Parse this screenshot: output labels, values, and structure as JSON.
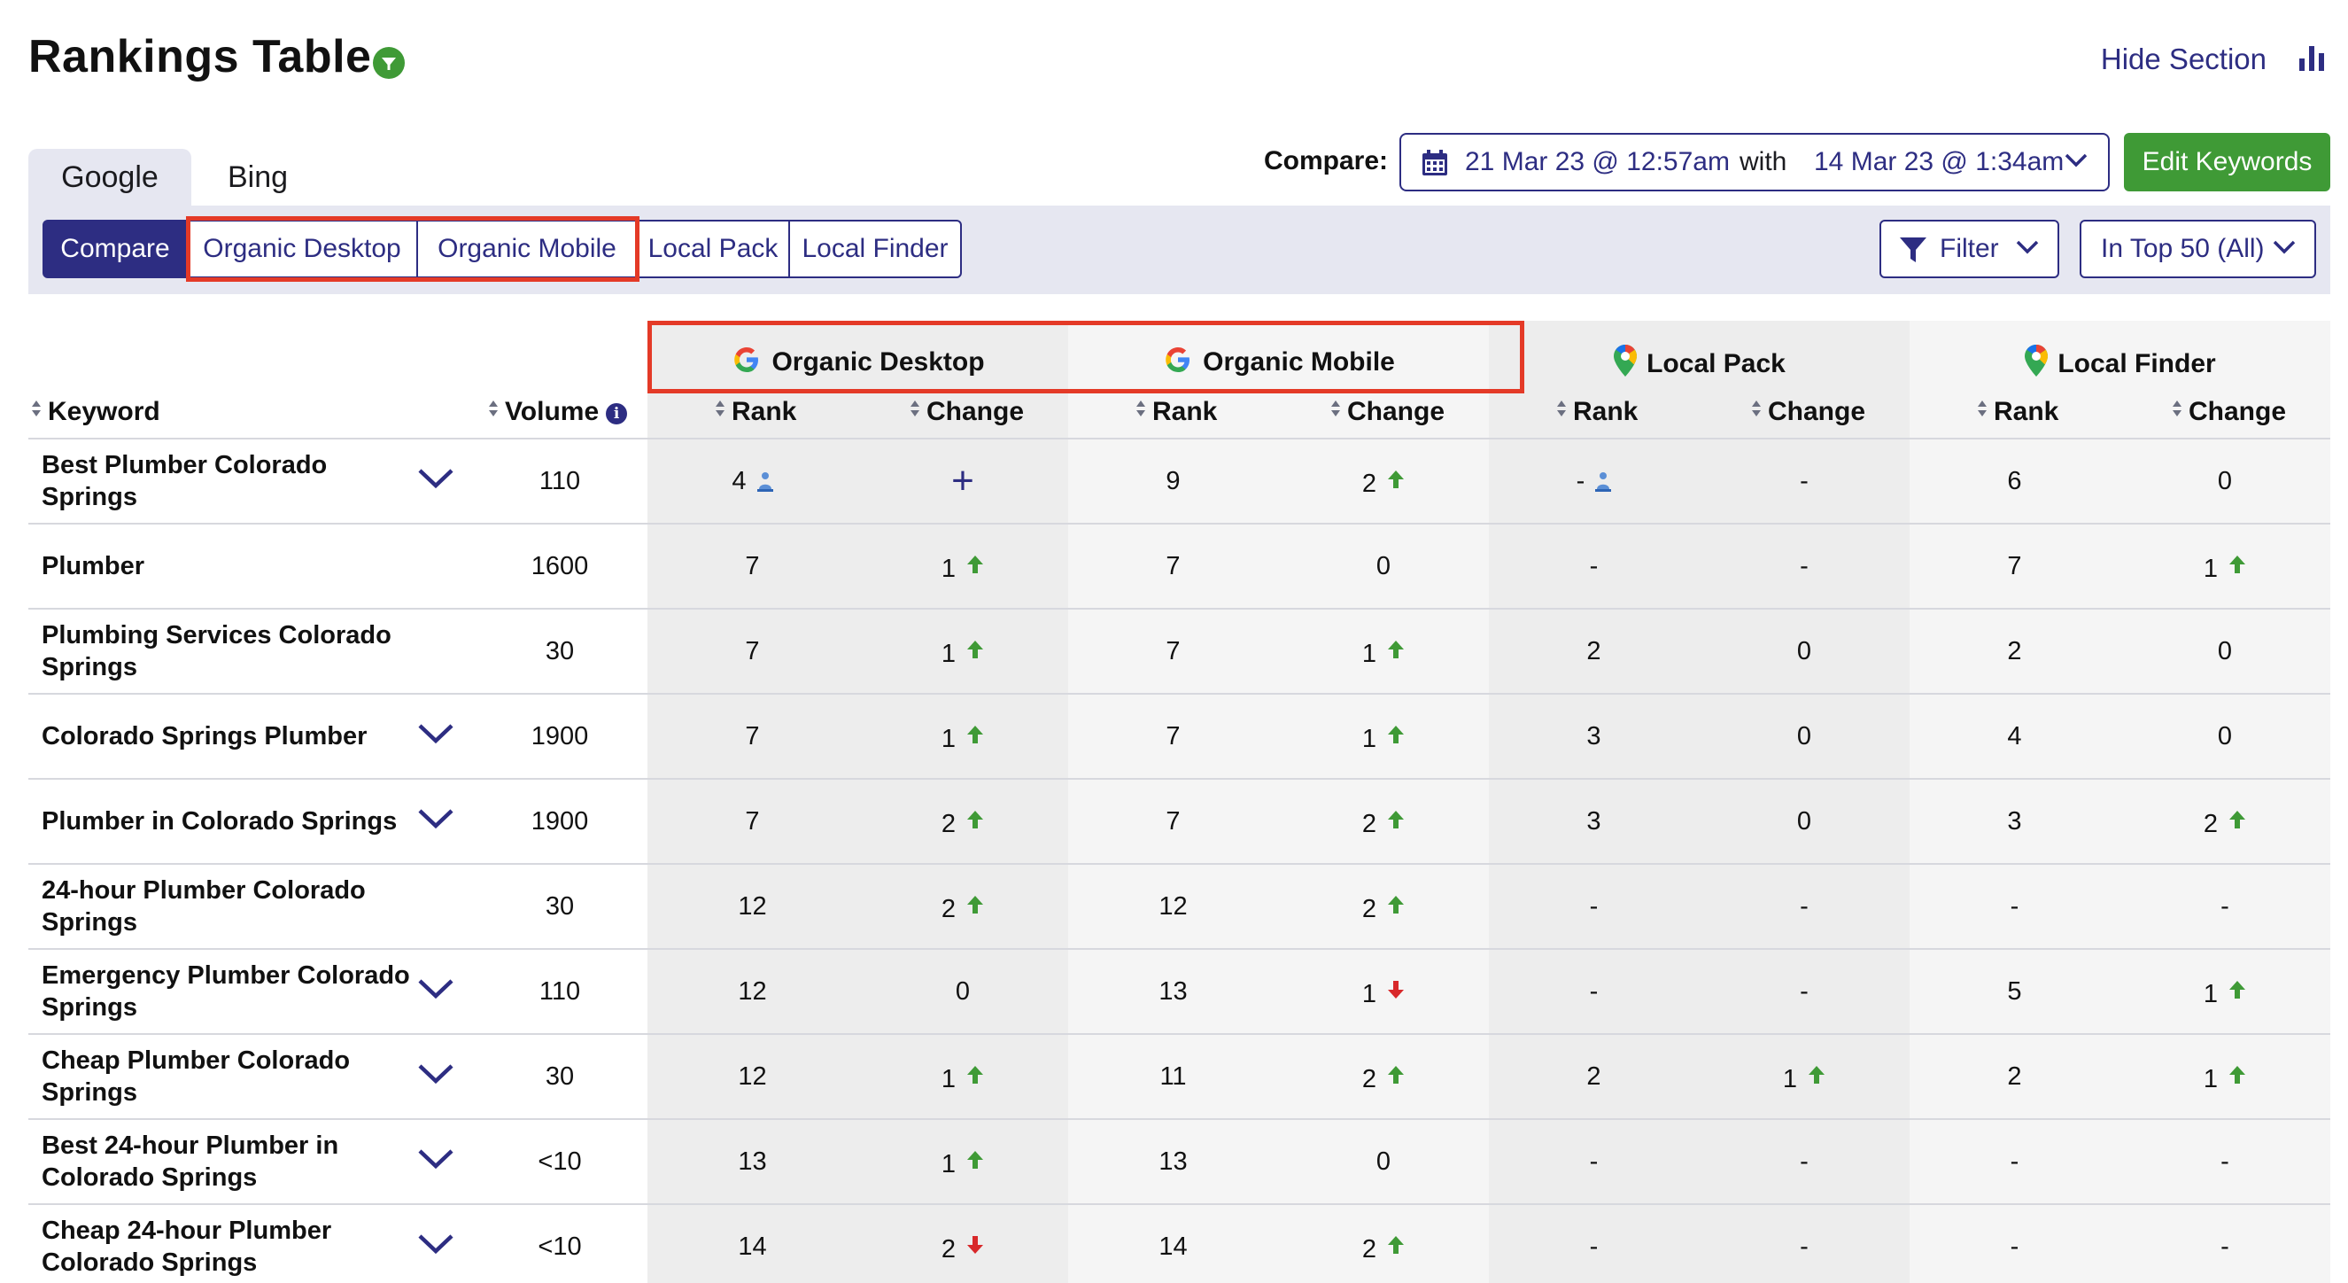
{
  "page": {
    "title": "Rankings Table",
    "hide_section": "Hide Section"
  },
  "engine_tabs": [
    {
      "label": "Google",
      "active": true
    },
    {
      "label": "Bing",
      "active": false
    }
  ],
  "compare": {
    "label": "Compare:",
    "date_from": "21 Mar 23 @ 12:57am",
    "with_label": "with",
    "date_to": "14 Mar 23 @ 1:34am"
  },
  "edit_keywords": "Edit Keywords",
  "view_tabs": [
    {
      "label": "Compare",
      "active": true
    },
    {
      "label": "Organic Desktop",
      "active": false
    },
    {
      "label": "Organic Mobile",
      "active": false
    },
    {
      "label": "Local Pack",
      "active": false
    },
    {
      "label": "Local Finder",
      "active": false
    }
  ],
  "filter_label": "Filter",
  "top_select": "In Top 50 (All)",
  "table": {
    "keyword_header": "Keyword",
    "volume_header": "Volume",
    "rank_header": "Rank",
    "change_header": "Change",
    "groups": [
      {
        "title": "Organic Desktop",
        "icon": "google-logo-icon"
      },
      {
        "title": "Organic Mobile",
        "icon": "google-logo-icon"
      },
      {
        "title": "Local Pack",
        "icon": "map-pin-icon"
      },
      {
        "title": "Local Finder",
        "icon": "map-pin-icon"
      }
    ],
    "rows": [
      {
        "keyword": "Best Plumber Colorado Springs",
        "expandable": true,
        "volume": "110",
        "od_rank": "4",
        "od_rank_icon": true,
        "od_change": "+",
        "od_dir": "new",
        "om_rank": "9",
        "om_change": "2",
        "om_dir": "up",
        "lp_rank": "-",
        "lp_rank_icon": true,
        "lp_change": "-",
        "lp_dir": "",
        "lf_rank": "6",
        "lf_change": "0",
        "lf_dir": ""
      },
      {
        "keyword": "Plumber",
        "expandable": false,
        "volume": "1600",
        "od_rank": "7",
        "od_change": "1",
        "od_dir": "up",
        "om_rank": "7",
        "om_change": "0",
        "om_dir": "",
        "lp_rank": "-",
        "lp_change": "-",
        "lp_dir": "",
        "lf_rank": "7",
        "lf_change": "1",
        "lf_dir": "up"
      },
      {
        "keyword": "Plumbing Services Colorado Springs",
        "expandable": false,
        "volume": "30",
        "od_rank": "7",
        "od_change": "1",
        "od_dir": "up",
        "om_rank": "7",
        "om_change": "1",
        "om_dir": "up",
        "lp_rank": "2",
        "lp_change": "0",
        "lp_dir": "",
        "lf_rank": "2",
        "lf_change": "0",
        "lf_dir": ""
      },
      {
        "keyword": "Colorado Springs Plumber",
        "expandable": true,
        "volume": "1900",
        "od_rank": "7",
        "od_change": "1",
        "od_dir": "up",
        "om_rank": "7",
        "om_change": "1",
        "om_dir": "up",
        "lp_rank": "3",
        "lp_change": "0",
        "lp_dir": "",
        "lf_rank": "4",
        "lf_change": "0",
        "lf_dir": ""
      },
      {
        "keyword": "Plumber in Colorado Springs",
        "expandable": true,
        "volume": "1900",
        "od_rank": "7",
        "od_change": "2",
        "od_dir": "up",
        "om_rank": "7",
        "om_change": "2",
        "om_dir": "up",
        "lp_rank": "3",
        "lp_change": "0",
        "lp_dir": "",
        "lf_rank": "3",
        "lf_change": "2",
        "lf_dir": "up"
      },
      {
        "keyword": "24-hour Plumber Colorado Springs",
        "expandable": false,
        "volume": "30",
        "od_rank": "12",
        "od_change": "2",
        "od_dir": "up",
        "om_rank": "12",
        "om_change": "2",
        "om_dir": "up",
        "lp_rank": "-",
        "lp_change": "-",
        "lp_dir": "",
        "lf_rank": "-",
        "lf_change": "-",
        "lf_dir": ""
      },
      {
        "keyword": "Emergency Plumber Colorado Springs",
        "expandable": true,
        "volume": "110",
        "od_rank": "12",
        "od_change": "0",
        "od_dir": "",
        "om_rank": "13",
        "om_change": "1",
        "om_dir": "down",
        "lp_rank": "-",
        "lp_change": "-",
        "lp_dir": "",
        "lf_rank": "5",
        "lf_change": "1",
        "lf_dir": "up"
      },
      {
        "keyword": "Cheap Plumber Colorado Springs",
        "expandable": true,
        "volume": "30",
        "od_rank": "12",
        "od_change": "1",
        "od_dir": "up",
        "om_rank": "11",
        "om_change": "2",
        "om_dir": "up",
        "lp_rank": "2",
        "lp_change": "1",
        "lp_dir": "up",
        "lf_rank": "2",
        "lf_change": "1",
        "lf_dir": "up"
      },
      {
        "keyword": "Best 24-hour Plumber in Colorado Springs",
        "expandable": true,
        "volume": "<10",
        "od_rank": "13",
        "od_change": "1",
        "od_dir": "up",
        "om_rank": "13",
        "om_change": "0",
        "om_dir": "",
        "lp_rank": "-",
        "lp_change": "-",
        "lp_dir": "",
        "lf_rank": "-",
        "lf_change": "-",
        "lf_dir": ""
      },
      {
        "keyword": "Cheap 24-hour Plumber Colorado Springs",
        "expandable": true,
        "volume": "<10",
        "od_rank": "14",
        "od_change": "2",
        "od_dir": "down",
        "om_rank": "14",
        "om_change": "2",
        "om_dir": "up",
        "lp_rank": "-",
        "lp_change": "-",
        "lp_dir": "",
        "lf_rank": "-",
        "lf_change": "-",
        "lf_dir": ""
      }
    ]
  },
  "colors": {
    "brand_navy": "#2d2d82",
    "accent_green": "#3f9a36",
    "highlight_red": "#e43a27",
    "arrow_up": "#3f9a36",
    "arrow_down": "#d8282a",
    "toolbar_bg": "#e6e7f1"
  }
}
